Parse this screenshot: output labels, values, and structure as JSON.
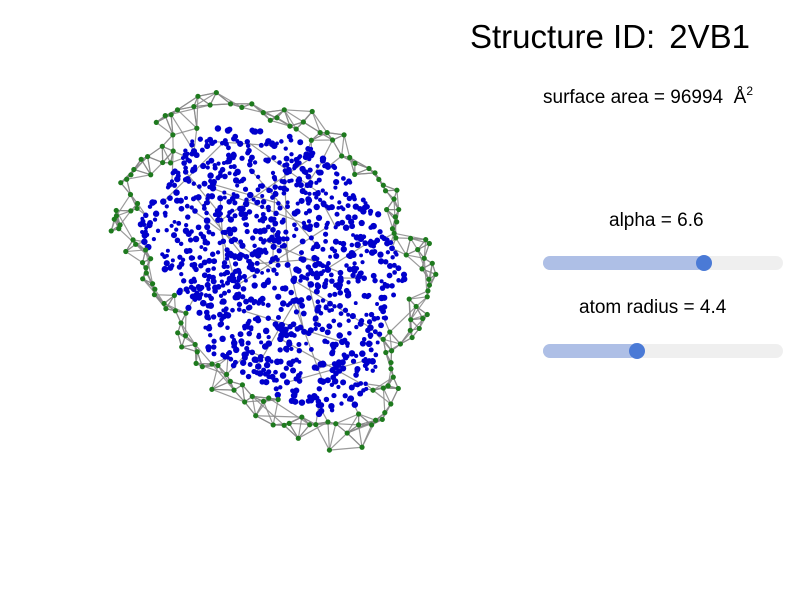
{
  "title": {
    "label": "Structure ID:",
    "id": "2VB1"
  },
  "surface_area": {
    "label": "surface area = 96994",
    "unit": "Å",
    "unit_sup": "2"
  },
  "alpha_slider": {
    "label": "alpha = 6.6",
    "value": 6.6,
    "fraction": 0.67
  },
  "radius_slider": {
    "label": "atom radius = 4.4",
    "value": 4.4,
    "fraction": 0.39
  },
  "colors": {
    "interior_atom": "#0000cc",
    "surface_atom": "#1e7a1e",
    "mesh_edge": "#888888",
    "slider_fill": "#aebfe6",
    "slider_track": "#efefef",
    "slider_knob": "#4a7ad6"
  }
}
